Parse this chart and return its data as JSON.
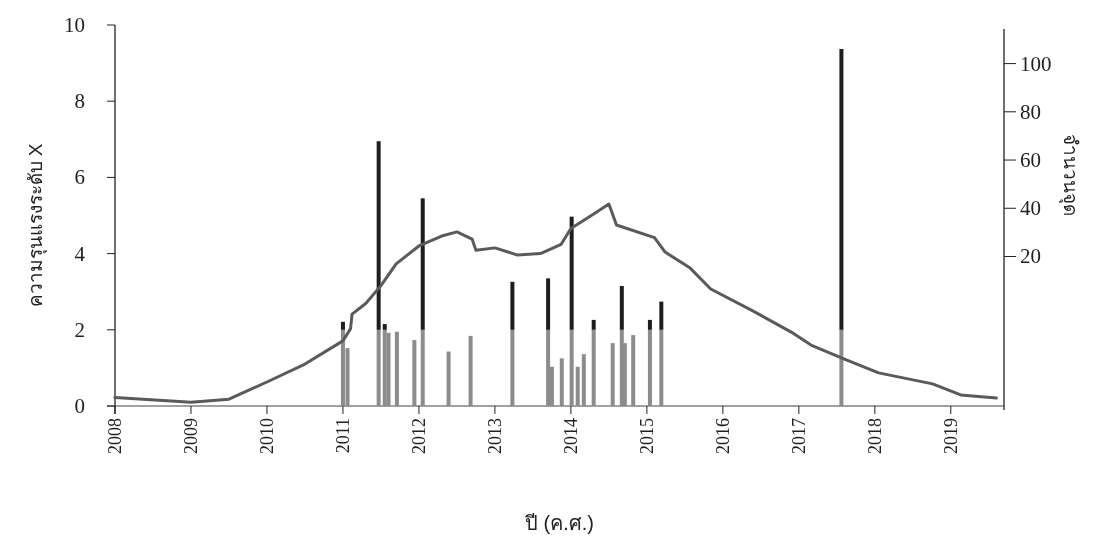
{
  "chart_data": {
    "type": "bar",
    "stacked": true,
    "xlabel": "ปี (ค.ศ.)",
    "ylabel": "ความรุนแรงระดับ X",
    "y2label": "จำนวนจุด",
    "x": [
      2011.0,
      2011.06,
      2011.47,
      2011.55,
      2011.6,
      2011.71,
      2011.94,
      2012.05,
      2012.39,
      2012.68,
      2013.23,
      2013.7,
      2013.75,
      2013.88,
      2014.01,
      2014.09,
      2014.17,
      2014.3,
      2014.55,
      2014.67,
      2014.71,
      2014.82,
      2015.04,
      2015.19,
      2017.56
    ],
    "series": [
      {
        "color": "#8c8c8c",
        "values": [
          2,
          1.52,
          2,
          2,
          1.92,
          1.95,
          1.73,
          2,
          1.43,
          1.84,
          2,
          2,
          1.03,
          1.25,
          2,
          1.03,
          1.36,
          2,
          1.65,
          2,
          1.65,
          1.86,
          2,
          2,
          2
        ]
      },
      {
        "color": "#1e1e1e",
        "values": [
          0.21,
          null,
          4.95,
          0.15,
          null,
          null,
          null,
          3.45,
          null,
          null,
          1.26,
          1.35,
          null,
          null,
          2.97,
          null,
          null,
          0.26,
          null,
          1.15,
          null,
          null,
          0.26,
          0.74,
          7.37
        ]
      },
      {
        "type": "line",
        "color": "#5a5a5a",
        "x": [
          2008.0,
          2009.0,
          2009.5,
          2010.0,
          2010.5,
          2011.0,
          2011.1,
          2011.12,
          2011.3,
          2011.5,
          2011.7,
          2012.0,
          2012.3,
          2012.5,
          2012.7,
          2012.75,
          2013.0,
          2013.3,
          2013.6,
          2013.87,
          2014.0,
          2014.3,
          2014.5,
          2014.6,
          2015.1,
          2015.24,
          2015.57,
          2015.84,
          2016.4,
          2016.9,
          2017.16,
          2017.6,
          2018.05,
          2018.76,
          2019.13,
          2019.6
        ],
        "values": [
          0.22,
          0.1,
          0.18,
          0.63,
          1.1,
          1.71,
          2.03,
          2.41,
          2.69,
          3.16,
          3.73,
          4.2,
          4.46,
          4.57,
          4.38,
          4.09,
          4.15,
          3.96,
          4.0,
          4.24,
          4.66,
          5.04,
          5.3,
          4.75,
          4.42,
          4.04,
          3.62,
          3.07,
          2.49,
          1.94,
          1.6,
          1.23,
          0.87,
          0.58,
          0.29,
          0.21
        ]
      }
    ],
    "xlim": [
      2008,
      2019.7
    ],
    "xticks": [
      2008,
      2009,
      2010,
      2011,
      2012,
      2013,
      2014,
      2015,
      2016,
      2017,
      2018,
      2019
    ],
    "ylim": [
      0,
      10
    ],
    "yticks": [
      0,
      2,
      4,
      6,
      8,
      10
    ],
    "y2lim": [
      -42,
      116
    ],
    "y2ticks": [
      20,
      40,
      60,
      80,
      100
    ]
  }
}
